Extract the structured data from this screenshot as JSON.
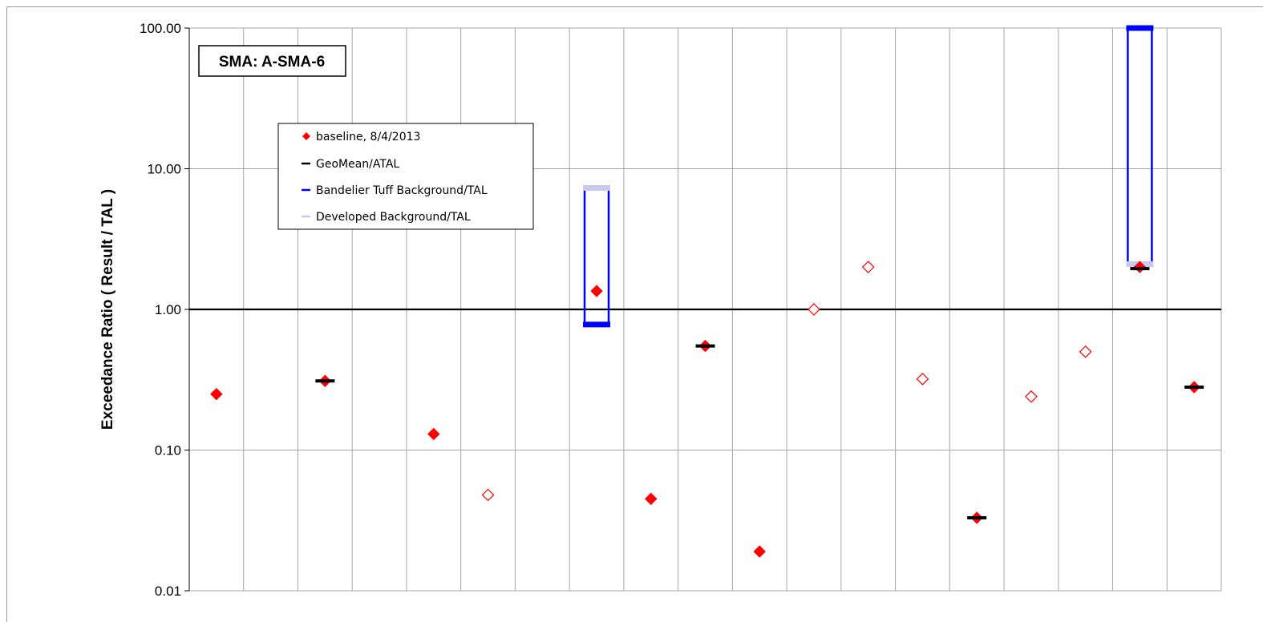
{
  "chart_data": {
    "type": "scatter",
    "title": "SMA: A-SMA-6",
    "ylabel": "Exceedance Ratio  ( Result / TAL )",
    "xlabel": "",
    "y_scale": "log",
    "ylim": [
      0.01,
      100
    ],
    "y_ticks": [
      "0.01",
      "0.10",
      "1.00",
      "10.00",
      "100.00"
    ],
    "x_count": 19,
    "grid": "on",
    "reference_line": 1.0,
    "legend_position": "upper-left",
    "legend": [
      {
        "label": "baseline, 8/4/2013",
        "marker": "diamond",
        "color": "#ff0000"
      },
      {
        "label": "GeoMean/ATAL",
        "marker": "dash",
        "color": "#000000"
      },
      {
        "label": "Bandelier Tuff Background/TAL",
        "marker": "dash",
        "color": "#0000ff"
      },
      {
        "label": "Developed Background/TAL",
        "marker": "dash",
        "color": "#c8c8f0"
      }
    ],
    "series": [
      {
        "name": "baseline, 8/4/2013",
        "points": [
          {
            "x": 1,
            "y": 0.25,
            "detected": true
          },
          {
            "x": 3,
            "y": 0.31,
            "detected": true
          },
          {
            "x": 5,
            "y": 0.13,
            "detected": true
          },
          {
            "x": 6,
            "y": 0.048,
            "detected": false
          },
          {
            "x": 8,
            "y": 1.35,
            "detected": true
          },
          {
            "x": 9,
            "y": 0.045,
            "detected": true
          },
          {
            "x": 10,
            "y": 0.55,
            "detected": true
          },
          {
            "x": 11,
            "y": 0.019,
            "detected": true
          },
          {
            "x": 12,
            "y": 1.0,
            "detected": false
          },
          {
            "x": 13,
            "y": 2.0,
            "detected": false
          },
          {
            "x": 14,
            "y": 0.32,
            "detected": false
          },
          {
            "x": 15,
            "y": 0.033,
            "detected": true
          },
          {
            "x": 16,
            "y": 0.24,
            "detected": false
          },
          {
            "x": 17,
            "y": 0.5,
            "detected": false
          },
          {
            "x": 18,
            "y": 2.0,
            "detected": true
          },
          {
            "x": 19,
            "y": 0.28,
            "detected": true
          }
        ]
      },
      {
        "name": "GeoMean/ATAL",
        "points": [
          {
            "x": 3,
            "y": 0.31
          },
          {
            "x": 10,
            "y": 0.55
          },
          {
            "x": 15,
            "y": 0.033
          },
          {
            "x": 18,
            "y": 1.95
          },
          {
            "x": 19,
            "y": 0.28
          }
        ]
      },
      {
        "name": "Bandelier Tuff Background/TAL",
        "points": [
          {
            "x": 8,
            "y": 0.78
          },
          {
            "x": 18,
            "y": 100
          }
        ]
      },
      {
        "name": "Developed Background/TAL",
        "points": [
          {
            "x": 8,
            "y": 7.3
          },
          {
            "x": 18,
            "y": 2.1
          }
        ]
      }
    ],
    "colors": {
      "detected": "#ff0000",
      "geomean": "#000000",
      "bandelier": "#0000ff",
      "developed": "#c8c8f0",
      "grid": "#a6a6a6"
    }
  }
}
